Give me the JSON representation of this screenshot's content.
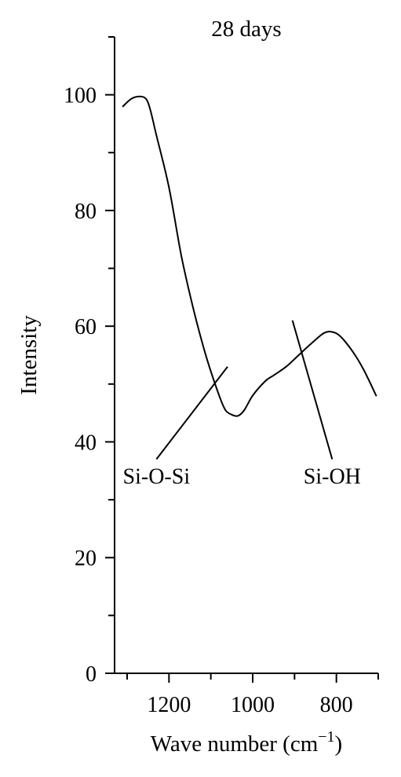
{
  "chart_data": {
    "type": "line",
    "title": "28 days",
    "xlabel": "Wave number (cm",
    "xlabel_sup": "−1",
    "xlabel_close": ")",
    "ylabel": "Intensity",
    "xlim": [
      1330,
      700
    ],
    "x_reversed": true,
    "ylim": [
      0,
      110
    ],
    "x_ticks_major": [
      1200,
      1000,
      800
    ],
    "x_ticks_minor": [
      1300,
      1100,
      900,
      700
    ],
    "y_ticks_major": [
      0,
      20,
      40,
      60,
      80,
      100
    ],
    "y_ticks_minor": [
      10,
      30,
      50,
      70,
      90,
      110
    ],
    "grid": false,
    "legend": "none",
    "series": [
      {
        "x": [
          1310,
          1290,
          1270,
          1255,
          1245,
          1230,
          1200,
          1170,
          1140,
          1110,
          1080,
          1065,
          1050,
          1035,
          1020,
          1000,
          970,
          950,
          920,
          890,
          860,
          830,
          810,
          790,
          760,
          735,
          705
        ],
        "y": [
          98,
          99.3,
          99.7,
          99.3,
          97.5,
          93,
          84,
          72,
          62.5,
          54.5,
          48,
          45.5,
          44.7,
          44.5,
          45.5,
          48,
          50.5,
          51.5,
          53,
          55,
          57,
          58.8,
          59,
          58.2,
          55.5,
          52.5,
          48
        ]
      }
    ],
    "annotations": [
      {
        "text": "Si-O-Si",
        "x": 1060,
        "y": 53,
        "text_x": 1230,
        "text_y": 37
      },
      {
        "text": "Si-OH",
        "x": 905,
        "y": 61,
        "text_x": 810,
        "text_y": 37
      }
    ]
  }
}
